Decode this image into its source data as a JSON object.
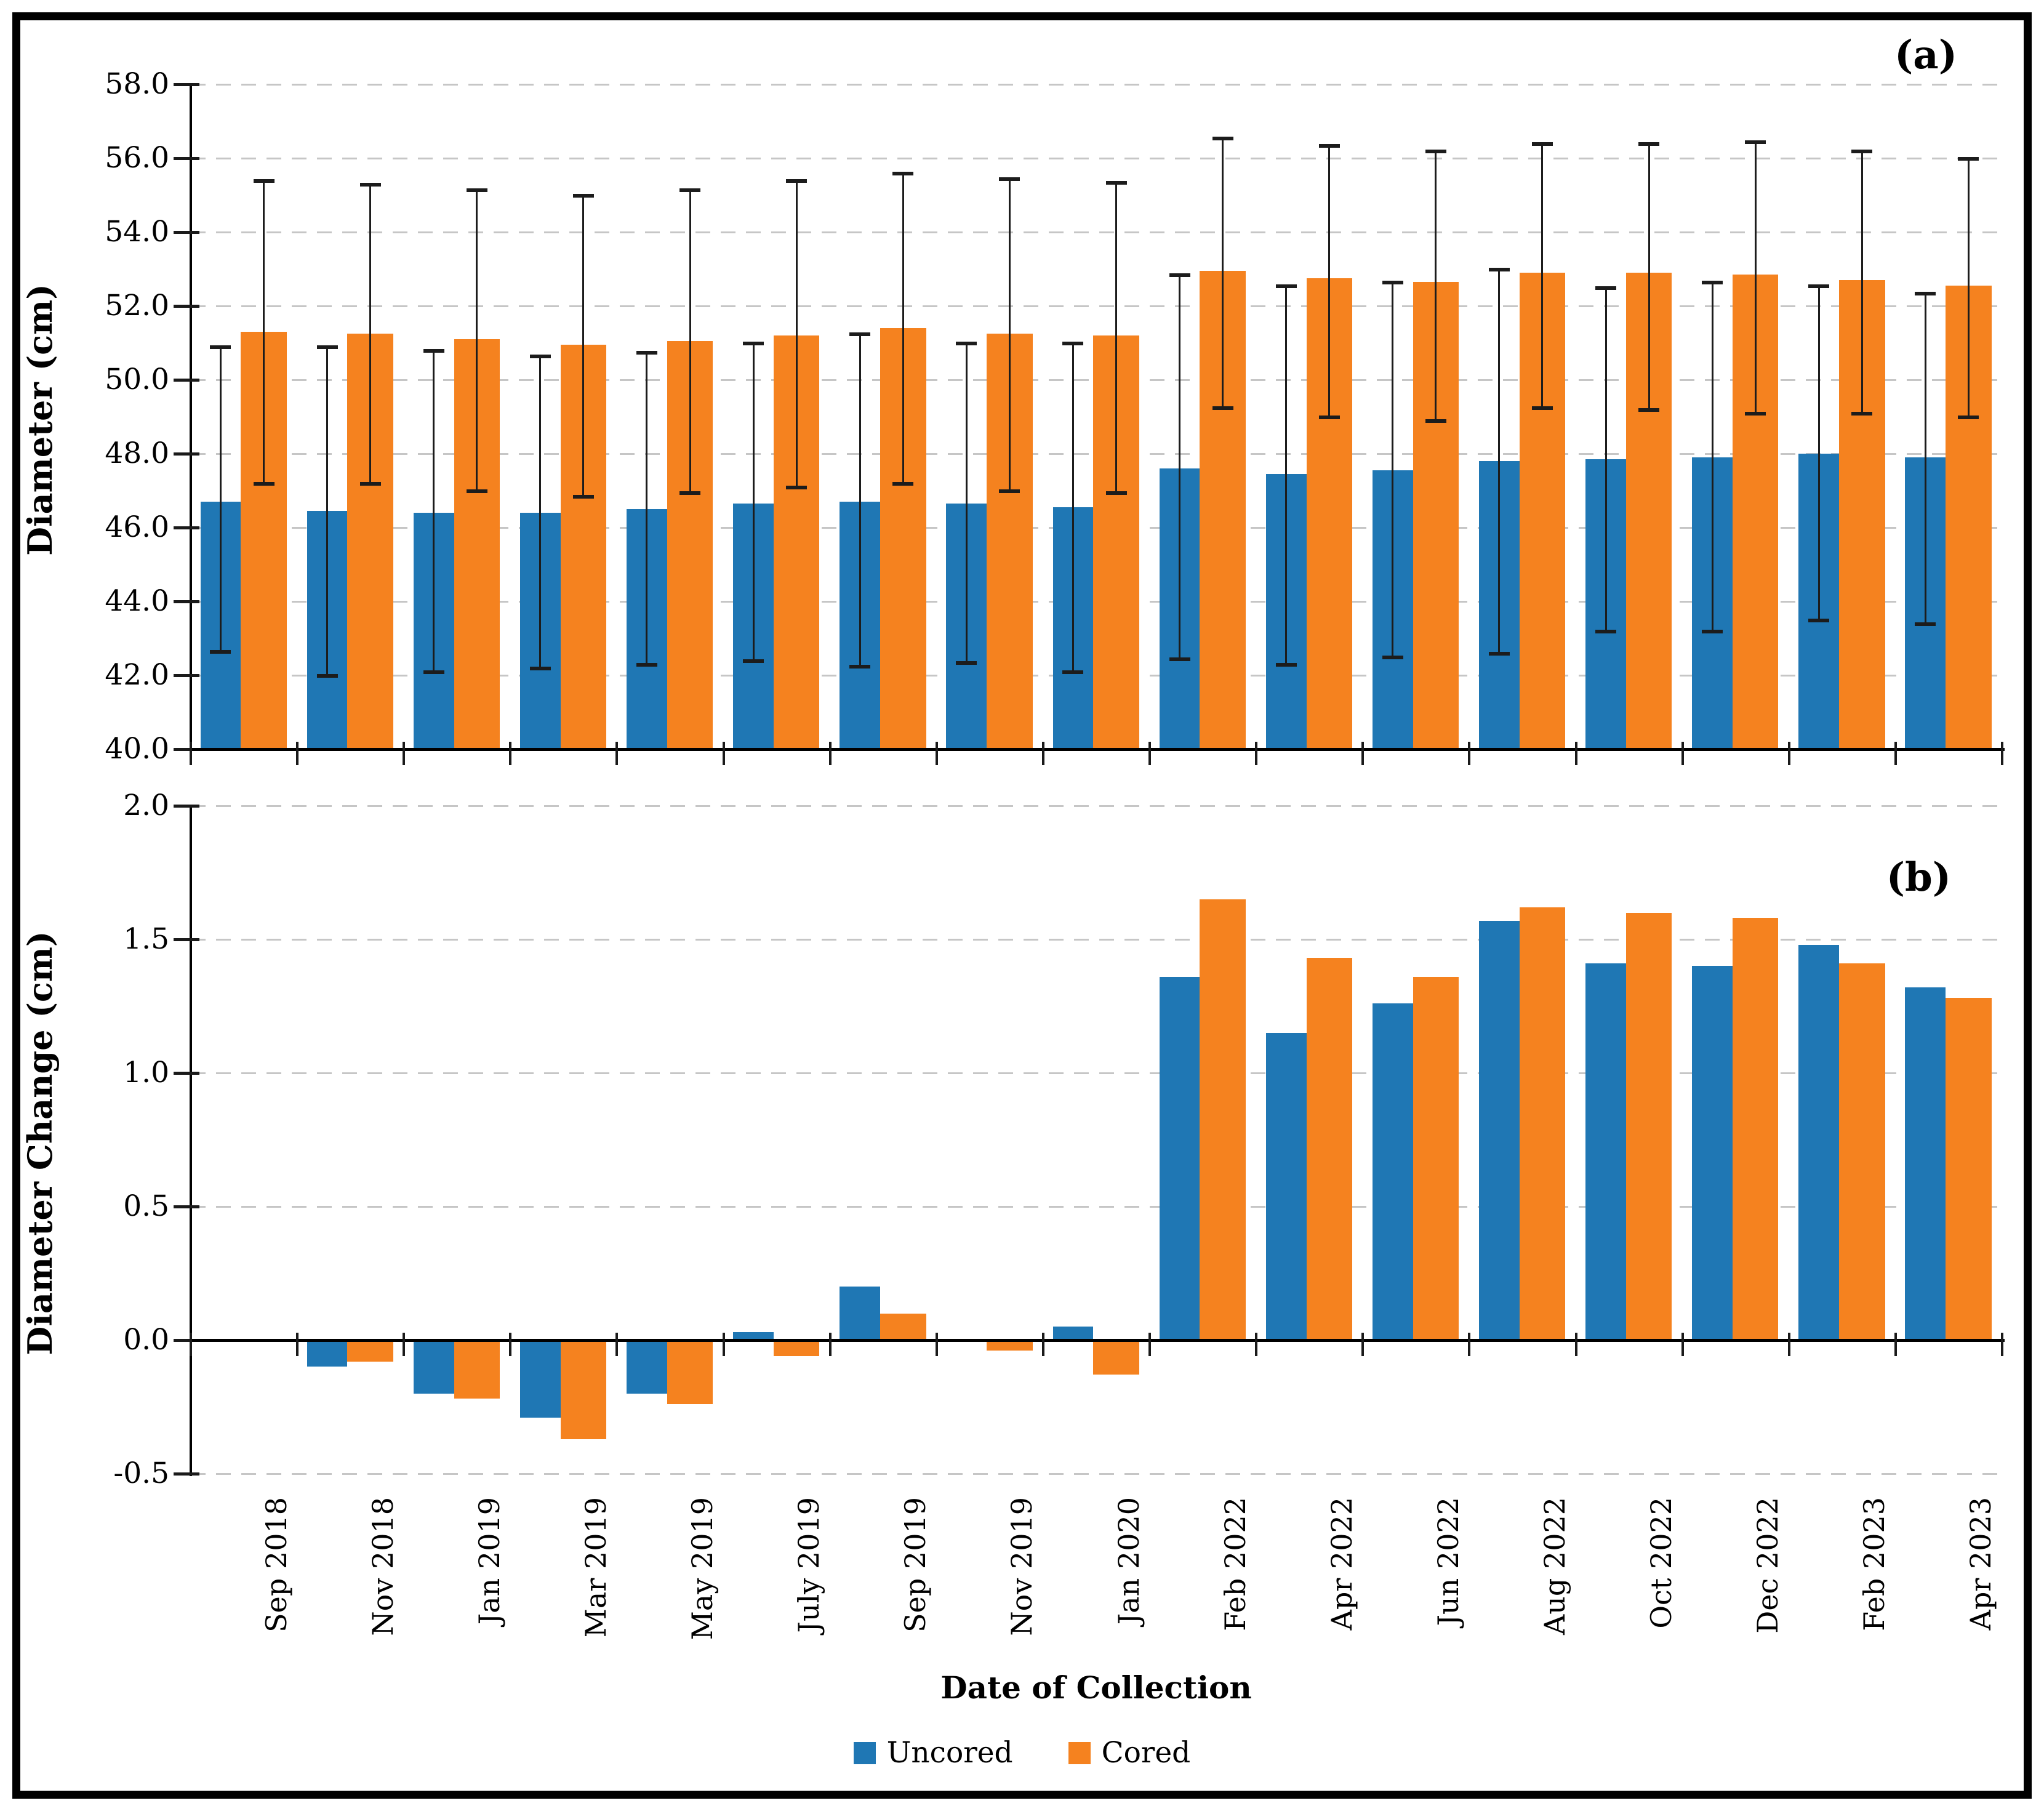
{
  "figure": {
    "panel_a_label": "(a)",
    "panel_b_label": "(b)",
    "x_axis_title": "Date of Collection",
    "colors": {
      "uncored": "#1f77b4",
      "cored": "#f5821f",
      "gridline": "#c6c6c6",
      "error_bar": "#1c1c1c"
    },
    "legend": [
      {
        "label": "Uncored",
        "color": "#1f77b4"
      },
      {
        "label": "Cored",
        "color": "#f5821f"
      }
    ]
  },
  "chart_data": [
    {
      "type": "bar",
      "panel": "a",
      "ylabel": "Diameter (cm)",
      "ylim": [
        40.0,
        58.0
      ],
      "yticks": [
        58.0,
        56.0,
        54.0,
        52.0,
        50.0,
        48.0,
        46.0,
        44.0,
        42.0,
        40.0
      ],
      "grid": "dashed-horizontal",
      "error_bars": true,
      "legend_position": "bottom-shared",
      "categories": [
        "Sep 2018",
        "Nov 2018",
        "Jan 2019",
        "Mar 2019",
        "May 2019",
        "July 2019",
        "Sep 2019",
        "Nov 2019",
        "Jan 2020",
        "Feb 2022",
        "Apr 2022",
        "Jun 2022",
        "Aug 2022",
        "Oct 2022",
        "Dec 2022",
        "Feb 2023",
        "Apr 2023"
      ],
      "series": [
        {
          "name": "Uncored",
          "color": "#1f77b4",
          "values": [
            46.7,
            46.45,
            46.4,
            46.4,
            46.5,
            46.65,
            46.7,
            46.65,
            46.55,
            47.6,
            47.45,
            47.55,
            47.8,
            47.85,
            47.9,
            48.0,
            47.9
          ],
          "error_top": [
            50.9,
            50.9,
            50.8,
            50.65,
            50.75,
            51.0,
            51.25,
            51.0,
            51.0,
            52.85,
            52.55,
            52.65,
            53.0,
            52.5,
            52.65,
            52.55,
            52.35
          ],
          "error_bottom": [
            42.65,
            42.0,
            42.1,
            42.2,
            42.3,
            42.4,
            42.25,
            42.35,
            42.1,
            42.45,
            42.3,
            42.5,
            42.6,
            43.2,
            43.2,
            43.5,
            43.4
          ]
        },
        {
          "name": "Cored",
          "color": "#f5821f",
          "values": [
            51.3,
            51.25,
            51.1,
            50.95,
            51.05,
            51.2,
            51.4,
            51.25,
            51.2,
            52.95,
            52.75,
            52.65,
            52.9,
            52.9,
            52.85,
            52.7,
            52.55
          ],
          "error_top": [
            55.4,
            55.3,
            55.15,
            55.0,
            55.15,
            55.4,
            55.6,
            55.45,
            55.35,
            56.55,
            56.35,
            56.2,
            56.4,
            56.4,
            56.45,
            56.2,
            56.0
          ],
          "error_bottom": [
            47.2,
            47.2,
            47.0,
            46.85,
            46.95,
            47.1,
            47.2,
            47.0,
            46.95,
            49.25,
            49.0,
            48.9,
            49.25,
            49.2,
            49.1,
            49.1,
            49.0
          ]
        }
      ]
    },
    {
      "type": "bar",
      "panel": "b",
      "ylabel": "Diameter Change (cm)",
      "ylim": [
        -0.5,
        2.0
      ],
      "yticks": [
        2.0,
        1.5,
        1.0,
        0.5,
        0.0,
        -0.5
      ],
      "grid": "dashed-horizontal",
      "error_bars": false,
      "legend_position": "bottom-shared",
      "categories": [
        "Sep 2018",
        "Nov 2018",
        "Jan 2019",
        "Mar 2019",
        "May 2019",
        "July 2019",
        "Sep 2019",
        "Nov 2019",
        "Jan 2020",
        "Feb 2022",
        "Apr 2022",
        "Jun 2022",
        "Aug 2022",
        "Oct 2022",
        "Dec 2022",
        "Feb 2023",
        "Apr 2023"
      ],
      "series": [
        {
          "name": "Uncored",
          "color": "#1f77b4",
          "values": [
            0.0,
            -0.1,
            -0.2,
            -0.29,
            -0.2,
            0.03,
            0.2,
            0.0,
            0.05,
            1.36,
            1.15,
            1.26,
            1.57,
            1.41,
            1.4,
            1.48,
            1.32
          ]
        },
        {
          "name": "Cored",
          "color": "#f5821f",
          "values": [
            0.0,
            -0.08,
            -0.22,
            -0.37,
            -0.24,
            -0.06,
            0.1,
            -0.04,
            -0.13,
            1.65,
            1.43,
            1.36,
            1.62,
            1.6,
            1.58,
            1.41,
            1.28
          ]
        }
      ]
    }
  ]
}
